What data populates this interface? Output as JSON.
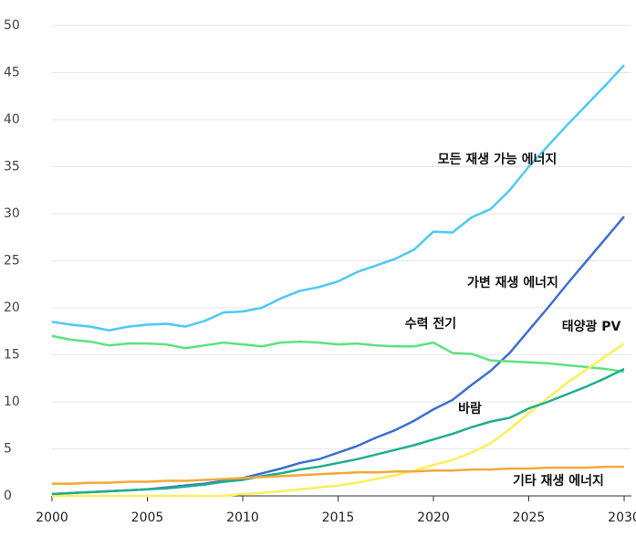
{
  "chart_data": {
    "type": "line",
    "x": [
      2000,
      2001,
      2002,
      2003,
      2004,
      2005,
      2006,
      2007,
      2008,
      2009,
      2010,
      2011,
      2012,
      2013,
      2014,
      2015,
      2016,
      2017,
      2018,
      2019,
      2020,
      2021,
      2022,
      2023,
      2024,
      2025,
      2026,
      2027,
      2028,
      2029,
      2030
    ],
    "series": [
      {
        "name": "모든 재생 가능 에너지",
        "color": "#4dc9f5",
        "values": [
          18.5,
          18.2,
          18.0,
          17.6,
          18.0,
          18.2,
          18.3,
          18.0,
          18.6,
          19.5,
          19.6,
          20.0,
          21.0,
          21.8,
          22.2,
          22.8,
          23.8,
          24.5,
          25.2,
          26.2,
          28.1,
          28.0,
          29.6,
          30.5,
          32.5,
          35.0,
          37.2,
          39.4,
          41.5,
          43.6,
          45.8
        ]
      },
      {
        "name": "가변 재생 에너지",
        "color": "#3a6fd0",
        "values": [
          0.2,
          0.3,
          0.4,
          0.5,
          0.6,
          0.7,
          0.9,
          1.1,
          1.3,
          1.6,
          1.9,
          2.4,
          2.9,
          3.5,
          3.9,
          4.6,
          5.3,
          6.2,
          7.0,
          8.0,
          9.2,
          10.2,
          11.8,
          13.3,
          15.2,
          17.6,
          20.0,
          22.5,
          24.9,
          27.3,
          29.7
        ]
      },
      {
        "name": "수력 전기",
        "color": "#5de27f",
        "values": [
          17.0,
          16.6,
          16.4,
          16.0,
          16.2,
          16.2,
          16.1,
          15.7,
          16.0,
          16.3,
          16.1,
          15.9,
          16.3,
          16.4,
          16.3,
          16.1,
          16.2,
          16.0,
          15.9,
          15.9,
          16.3,
          15.2,
          15.1,
          14.4,
          14.3,
          14.2,
          14.1,
          13.9,
          13.7,
          13.5,
          13.2
        ]
      },
      {
        "name": "태양광 PV",
        "color": "#fbef5a",
        "values": [
          0,
          0,
          0,
          0,
          0,
          0,
          0,
          0,
          0,
          0,
          0.2,
          0.3,
          0.5,
          0.7,
          0.9,
          1.1,
          1.4,
          1.8,
          2.2,
          2.7,
          3.3,
          3.8,
          4.6,
          5.6,
          7.1,
          8.8,
          10.4,
          12.0,
          13.4,
          14.8,
          16.2
        ]
      },
      {
        "name": "바람",
        "color": "#1fae8d",
        "values": [
          0.2,
          0.3,
          0.4,
          0.5,
          0.6,
          0.7,
          0.8,
          1.0,
          1.2,
          1.5,
          1.7,
          2.1,
          2.4,
          2.8,
          3.1,
          3.5,
          3.9,
          4.4,
          4.9,
          5.4,
          6.0,
          6.6,
          7.3,
          7.9,
          8.3,
          9.3,
          10.0,
          10.8,
          11.6,
          12.5,
          13.5
        ]
      },
      {
        "name": "기타 재생 에너지",
        "color": "#f5a83a",
        "values": [
          1.3,
          1.3,
          1.4,
          1.4,
          1.5,
          1.5,
          1.6,
          1.6,
          1.7,
          1.8,
          1.9,
          2.0,
          2.1,
          2.2,
          2.3,
          2.4,
          2.5,
          2.5,
          2.6,
          2.6,
          2.7,
          2.7,
          2.8,
          2.8,
          2.9,
          2.9,
          3.0,
          3.0,
          3.0,
          3.1,
          3.1
        ]
      }
    ],
    "xlim": [
      2000,
      2030
    ],
    "xticks": [
      2000,
      2005,
      2010,
      2015,
      2020,
      2025,
      2030
    ],
    "ylim": [
      0,
      50
    ],
    "yticks": [
      0,
      5,
      10,
      15,
      20,
      25,
      30,
      35,
      40,
      45,
      50
    ],
    "grid": true
  }
}
